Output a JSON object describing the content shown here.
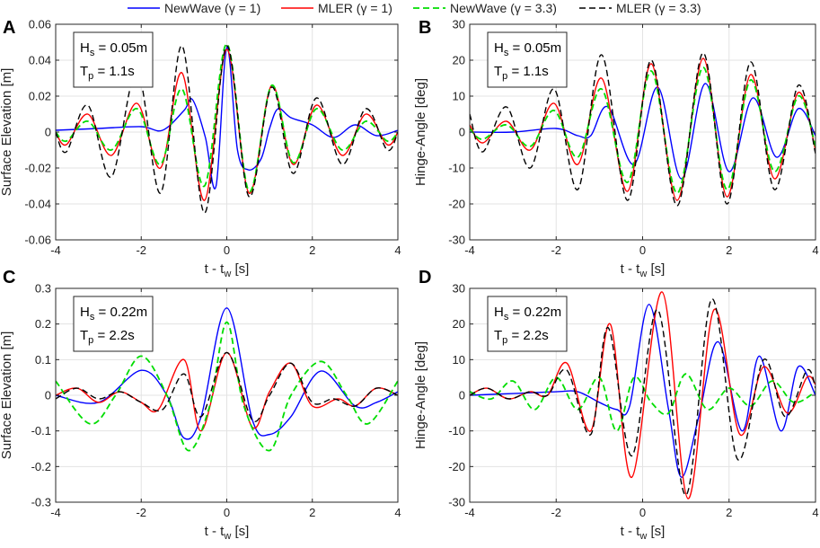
{
  "legend": {
    "items": [
      {
        "label": "NewWave (γ = 1)",
        "color": "#0000ff",
        "dash": "solid"
      },
      {
        "label": "MLER (γ = 1)",
        "color": "#ff0000",
        "dash": "solid"
      },
      {
        "label": "NewWave (γ = 3.3)",
        "color": "#00dd00",
        "dash": "dashed"
      },
      {
        "label": "MLER (γ = 3.3)",
        "color": "#000000",
        "dash": "dashed"
      }
    ]
  },
  "chart_data": [
    {
      "id": "A",
      "panel_letter": "A",
      "type": "line",
      "xlabel": "t - t",
      "xlabel_sub": "w",
      "xlabel_tail": " [s]",
      "ylabel": "Surface Elevation [m]",
      "xlim": [
        -4,
        4
      ],
      "ylim": [
        -0.06,
        0.06
      ],
      "xticks": [
        -4,
        -2,
        0,
        2,
        4
      ],
      "xtick_labels": [
        "-4",
        "-2",
        "0",
        "2",
        "4"
      ],
      "yticks": [
        -0.06,
        -0.04,
        -0.02,
        0,
        0.02,
        0.04,
        0.06
      ],
      "ytick_labels": [
        "-0.06",
        "-0.04",
        "-0.02",
        "0",
        "0.02",
        "0.04",
        "0.06"
      ],
      "grid": true,
      "annotation": {
        "hs_main": "H",
        "hs_sub": "s",
        "hs_val": " = 0.05m",
        "tp_main": "T",
        "tp_sub": "p",
        "tp_val": " = 1.1s"
      },
      "series": [
        {
          "name": "NewWave (γ = 1)",
          "x": [
            -4,
            -3,
            -2,
            -1.5,
            -1,
            -0.8,
            -0.5,
            -0.25,
            0,
            0.25,
            0.5,
            0.8,
            1,
            1.2,
            1.5,
            2,
            2.5,
            3,
            3.5,
            4
          ],
          "y": [
            0.001,
            0.002,
            0.003,
            0.001,
            0.012,
            0.018,
            -0.003,
            -0.03,
            0.047,
            -0.01,
            -0.021,
            -0.015,
            0.002,
            0.013,
            0.008,
            0.004,
            -0.003,
            0.004,
            -0.002,
            0.001
          ]
        },
        {
          "name": "MLER (γ = 1)",
          "x": [
            -4,
            -3.75,
            -3.25,
            -2.7,
            -2.1,
            -1.55,
            -1.05,
            -0.52,
            0,
            0.52,
            1.05,
            1.55,
            2.1,
            2.7,
            3.25,
            3.75,
            4
          ],
          "y": [
            0,
            -0.007,
            0.01,
            -0.013,
            0.016,
            -0.02,
            0.033,
            -0.038,
            0.046,
            -0.034,
            0.026,
            -0.018,
            0.015,
            -0.013,
            0.01,
            -0.007,
            0
          ]
        },
        {
          "name": "NewWave (γ = 3.3)",
          "x": [
            -4,
            -3.75,
            -3.25,
            -2.7,
            -2.1,
            -1.55,
            -1.05,
            -0.52,
            0,
            0.52,
            1.05,
            1.55,
            2.1,
            2.7,
            3.25,
            3.75,
            4
          ],
          "y": [
            0,
            -0.005,
            0.006,
            -0.01,
            0.013,
            -0.018,
            0.024,
            -0.03,
            0.049,
            -0.033,
            0.026,
            -0.017,
            0.013,
            -0.01,
            0.006,
            -0.005,
            0
          ]
        },
        {
          "name": "MLER (γ = 3.3)",
          "x": [
            -4,
            -3.75,
            -3.25,
            -2.7,
            -2.1,
            -1.55,
            -1.05,
            -0.52,
            0,
            0.52,
            1.05,
            1.55,
            2.1,
            2.7,
            3.25,
            3.75,
            4
          ],
          "y": [
            0,
            -0.011,
            0.015,
            -0.025,
            0.034,
            -0.034,
            0.048,
            -0.045,
            0.048,
            -0.036,
            0.025,
            -0.023,
            0.019,
            -0.018,
            0.013,
            -0.01,
            0
          ]
        }
      ]
    },
    {
      "id": "B",
      "panel_letter": "B",
      "type": "line",
      "xlabel": "t - t",
      "xlabel_sub": "w",
      "xlabel_tail": " [s]",
      "ylabel": "Hinge-Angle [deg]",
      "xlim": [
        -4,
        4
      ],
      "ylim": [
        -30,
        30
      ],
      "xticks": [
        -4,
        -2,
        0,
        2,
        4
      ],
      "xtick_labels": [
        "-4",
        "-2",
        "0",
        "2",
        "4"
      ],
      "yticks": [
        -30,
        -20,
        -10,
        0,
        10,
        20,
        30
      ],
      "ytick_labels": [
        "-30",
        "-20",
        "-10",
        "0",
        "10",
        "20",
        "30"
      ],
      "grid": true,
      "annotation": {
        "hs_main": "H",
        "hs_sub": "s",
        "hs_val": " = 0.05m",
        "tp_main": "T",
        "tp_sub": "p",
        "tp_val": " = 1.1s"
      },
      "series": [
        {
          "name": "NewWave (γ = 1)",
          "x": [
            -4,
            -3,
            -2,
            -1.5,
            -1.2,
            -0.8,
            -0.2,
            0.35,
            0.9,
            1.45,
            2,
            2.55,
            3.1,
            3.6,
            4
          ],
          "y": [
            0,
            0,
            1,
            -1,
            -1,
            7,
            -9,
            12.5,
            -13,
            13.5,
            -11,
            9.5,
            -7,
            6.5,
            -1
          ]
        },
        {
          "name": "MLER (γ = 1)",
          "x": [
            -4,
            -3.7,
            -3.15,
            -2.6,
            -2.05,
            -1.5,
            -0.95,
            -0.35,
            0.2,
            0.8,
            1.4,
            1.95,
            2.5,
            3.05,
            3.6,
            4
          ],
          "y": [
            2,
            -3,
            3,
            -5,
            8,
            -9,
            15,
            -16.5,
            19,
            -19,
            20.5,
            -18,
            16,
            -13,
            11,
            -5
          ]
        },
        {
          "name": "NewWave (γ = 3.3)",
          "x": [
            -4,
            -3.7,
            -3.15,
            -2.6,
            -2.05,
            -1.5,
            -0.95,
            -0.35,
            0.2,
            0.8,
            1.4,
            1.95,
            2.5,
            3.05,
            3.6,
            4
          ],
          "y": [
            1,
            -2,
            2,
            -4,
            6,
            -7,
            12,
            -14,
            17,
            -17,
            18,
            -16,
            14.5,
            -11,
            10,
            -4
          ]
        },
        {
          "name": "MLER (γ = 3.3)",
          "x": [
            -4,
            -3.7,
            -3.15,
            -2.6,
            -2.05,
            -1.5,
            -0.95,
            -0.35,
            0.2,
            0.8,
            1.4,
            1.95,
            2.5,
            3.05,
            3.6,
            4
          ],
          "y": [
            5,
            -5.5,
            7,
            -10,
            12,
            -16,
            21.5,
            -19,
            20,
            -20.5,
            22,
            -20,
            19.5,
            -16,
            13,
            -6
          ]
        }
      ]
    },
    {
      "id": "C",
      "panel_letter": "C",
      "type": "line",
      "xlabel": "t - t",
      "xlabel_sub": "w",
      "xlabel_tail": " [s]",
      "ylabel": "Surface Elevation [m]",
      "xlim": [
        -4,
        4
      ],
      "ylim": [
        -0.3,
        0.3
      ],
      "xticks": [
        -4,
        -2,
        0,
        2,
        4
      ],
      "xtick_labels": [
        "-4",
        "-2",
        "0",
        "2",
        "4"
      ],
      "yticks": [
        -0.3,
        -0.2,
        -0.1,
        0,
        0.1,
        0.2,
        0.3
      ],
      "ytick_labels": [
        "-0.3",
        "-0.2",
        "-0.1",
        "0",
        "0.1",
        "0.2",
        "0.3"
      ],
      "grid": true,
      "annotation": {
        "hs_main": "H",
        "hs_sub": "s",
        "hs_val": " = 0.22m",
        "tp_main": "T",
        "tp_sub": "p",
        "tp_val": " = 2.2s"
      },
      "series": [
        {
          "name": "NewWave (γ = 1)",
          "x": [
            -4,
            -3,
            -2,
            -1.4,
            -1,
            -0.6,
            0,
            0.6,
            1,
            1.5,
            2.2,
            3,
            3.5,
            4
          ],
          "y": [
            0,
            -0.02,
            0.07,
            0,
            -0.12,
            -0.06,
            0.245,
            -0.07,
            -0.11,
            -0.06,
            0.068,
            -0.03,
            -0.02,
            0.01
          ]
        },
        {
          "name": "MLER (γ = 1)",
          "x": [
            -4,
            -3.5,
            -3,
            -2.5,
            -2,
            -1.6,
            -1,
            -0.6,
            0,
            0.6,
            1,
            1.5,
            2,
            2.6,
            3,
            3.5,
            4
          ],
          "y": [
            0,
            0.02,
            -0.02,
            0.01,
            -0.02,
            -0.04,
            0.1,
            -0.1,
            0.12,
            -0.09,
            0.01,
            0.09,
            -0.03,
            -0.01,
            -0.03,
            0.02,
            0
          ]
        },
        {
          "name": "NewWave (γ = 3.3)",
          "x": [
            -4,
            -3.2,
            -2.6,
            -2,
            -1.4,
            -0.9,
            -0.4,
            0,
            0.4,
            1,
            1.5,
            2.2,
            2.8,
            3.3,
            4
          ],
          "y": [
            0.04,
            -0.08,
            0,
            0.11,
            0,
            -0.155,
            -0.03,
            0.205,
            -0.03,
            -0.155,
            0,
            0.095,
            0,
            -0.08,
            0.04
          ]
        },
        {
          "name": "MLER (γ = 3.3)",
          "x": [
            -4,
            -3.5,
            -3,
            -2.5,
            -2,
            -1.5,
            -1,
            -0.6,
            0,
            0.6,
            1,
            1.5,
            2,
            2.5,
            3,
            3.5,
            4
          ],
          "y": [
            -0.01,
            0.02,
            -0.01,
            0.01,
            -0.02,
            -0.04,
            0.06,
            -0.06,
            0.12,
            -0.07,
            0,
            0.09,
            -0.02,
            -0.01,
            -0.03,
            0.02,
            0
          ]
        }
      ]
    },
    {
      "id": "D",
      "panel_letter": "D",
      "type": "line",
      "xlabel": "t - t",
      "xlabel_sub": "w",
      "xlabel_tail": " [s]",
      "ylabel": "Hinge-Angle [deg]",
      "xlim": [
        -4,
        4
      ],
      "ylim": [
        -30,
        30
      ],
      "xticks": [
        -4,
        -2,
        0,
        2,
        4
      ],
      "xtick_labels": [
        "-4",
        "-2",
        "0",
        "2",
        "4"
      ],
      "yticks": [
        -30,
        -20,
        -10,
        0,
        10,
        20,
        30
      ],
      "ytick_labels": [
        "-30",
        "-20",
        "-10",
        "0",
        "10",
        "20",
        "30"
      ],
      "grid": true,
      "annotation": {
        "hs_main": "H",
        "hs_sub": "s",
        "hs_val": " = 0.22m",
        "tp_main": "T",
        "tp_sub": "p",
        "tp_val": " = 2.2s"
      },
      "series": [
        {
          "name": "NewWave (γ = 1)",
          "x": [
            -4,
            -3,
            -2,
            -1.5,
            -1,
            -0.6,
            -0.3,
            0.15,
            0.6,
            0.9,
            1.3,
            1.75,
            2.3,
            2.7,
            3.2,
            3.6,
            4
          ],
          "y": [
            0,
            0.5,
            1,
            1,
            -2,
            -4,
            -3,
            25.5,
            -4,
            -23,
            -6,
            15,
            -10,
            11,
            -10,
            8,
            0
          ]
        },
        {
          "name": "MLER (γ = 1)",
          "x": [
            -4,
            -3.6,
            -3.1,
            -2.6,
            -2.2,
            -1.75,
            -1.2,
            -0.75,
            -0.25,
            0.45,
            1.05,
            1.65,
            2.25,
            2.8,
            3.35,
            3.8,
            4
          ],
          "y": [
            0,
            2,
            -1,
            1,
            0,
            9,
            -10,
            20,
            -23,
            29,
            -29,
            24,
            -11,
            8,
            -5,
            5,
            3
          ]
        },
        {
          "name": "NewWave (γ = 3.3)",
          "x": [
            -4,
            -3.5,
            -3,
            -2.5,
            -2,
            -1.5,
            -1,
            -0.6,
            -0.2,
            0.2,
            0.6,
            1,
            1.5,
            2,
            2.5,
            3,
            3.5,
            4
          ],
          "y": [
            1,
            -1,
            4,
            -4,
            5,
            -4,
            5,
            -10,
            5,
            -2,
            -5,
            6,
            -4,
            2,
            -3,
            4,
            -2,
            1
          ]
        },
        {
          "name": "MLER (γ = 3.3)",
          "x": [
            -4,
            -3.6,
            -3.1,
            -2.6,
            -2.2,
            -1.75,
            -1.2,
            -0.8,
            -0.25,
            0.35,
            1,
            1.6,
            2.2,
            2.8,
            3.3,
            3.8,
            4
          ],
          "y": [
            0,
            2,
            -1,
            1,
            0,
            7,
            -11,
            19,
            -17,
            24,
            -28,
            27,
            -18,
            10,
            -6,
            7,
            2
          ]
        }
      ]
    }
  ]
}
